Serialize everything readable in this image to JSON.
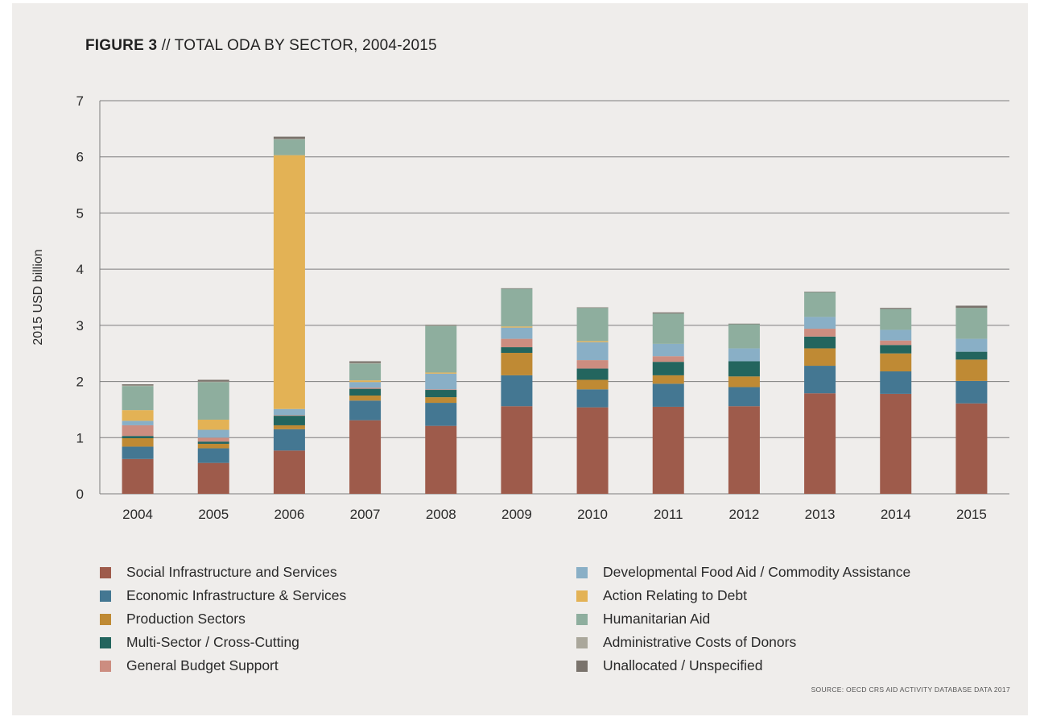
{
  "figure": {
    "label": "FIGURE 3",
    "title": "// TOTAL ODA BY SECTOR, 2004-2015",
    "source": "SOURCE: OECD CRS AID ACTIVITY DATABASE DATA 2017"
  },
  "chart_data": {
    "type": "bar",
    "stacked": true,
    "ylabel": "2015 USD billion",
    "xlabel": "",
    "ylim": [
      0,
      7
    ],
    "yticks": [
      0,
      1,
      2,
      3,
      4,
      5,
      6,
      7
    ],
    "grid": true,
    "legend_position": "bottom",
    "categories": [
      "2004",
      "2005",
      "2006",
      "2007",
      "2008",
      "2009",
      "2010",
      "2011",
      "2012",
      "2013",
      "2014",
      "2015"
    ],
    "series": [
      {
        "name": "Social Infrastructure and Services",
        "color": "#9e5b4b",
        "values": [
          0.62,
          0.55,
          0.77,
          1.31,
          1.21,
          1.56,
          1.54,
          1.55,
          1.56,
          1.79,
          1.78,
          1.61
        ]
      },
      {
        "name": "Economic Infrastructure & Services",
        "color": "#447792",
        "values": [
          0.22,
          0.26,
          0.38,
          0.35,
          0.41,
          0.55,
          0.32,
          0.41,
          0.34,
          0.49,
          0.4,
          0.4
        ]
      },
      {
        "name": "Production Sectors",
        "color": "#bf8a34",
        "values": [
          0.15,
          0.08,
          0.07,
          0.09,
          0.1,
          0.4,
          0.17,
          0.15,
          0.19,
          0.31,
          0.32,
          0.38
        ]
      },
      {
        "name": "Multi-Sector / Cross-Cutting",
        "color": "#23655e",
        "values": [
          0.04,
          0.04,
          0.17,
          0.12,
          0.13,
          0.1,
          0.2,
          0.24,
          0.27,
          0.21,
          0.15,
          0.14
        ]
      },
      {
        "name": "General Budget Support",
        "color": "#cc8d80",
        "values": [
          0.19,
          0.07,
          0.01,
          0.02,
          0.01,
          0.15,
          0.15,
          0.1,
          0.0,
          0.14,
          0.08,
          0.0
        ]
      },
      {
        "name": "Developmental Food Aid / Commodity Assistance",
        "color": "#89afc6",
        "values": [
          0.08,
          0.14,
          0.11,
          0.1,
          0.28,
          0.2,
          0.32,
          0.22,
          0.23,
          0.21,
          0.19,
          0.23
        ]
      },
      {
        "name": "Action Relating to Debt",
        "color": "#e3b255",
        "values": [
          0.19,
          0.18,
          4.52,
          0.03,
          0.02,
          0.02,
          0.02,
          0.0,
          0.0,
          0.0,
          0.0,
          0.0
        ]
      },
      {
        "name": "Humanitarian Aid",
        "color": "#8eae9e",
        "values": [
          0.43,
          0.67,
          0.28,
          0.3,
          0.83,
          0.67,
          0.59,
          0.54,
          0.43,
          0.44,
          0.37,
          0.55
        ]
      },
      {
        "name": "Administrative Costs of Donors",
        "color": "#aaa79b",
        "values": [
          0.01,
          0.01,
          0.01,
          0.01,
          0.01,
          0.0,
          0.0,
          0.0,
          0.0,
          0.0,
          0.0,
          0.0
        ]
      },
      {
        "name": "Unallocated / Unspecified",
        "color": "#7a736c",
        "values": [
          0.02,
          0.03,
          0.04,
          0.03,
          0.01,
          0.01,
          0.01,
          0.02,
          0.01,
          0.01,
          0.02,
          0.04
        ]
      }
    ]
  }
}
